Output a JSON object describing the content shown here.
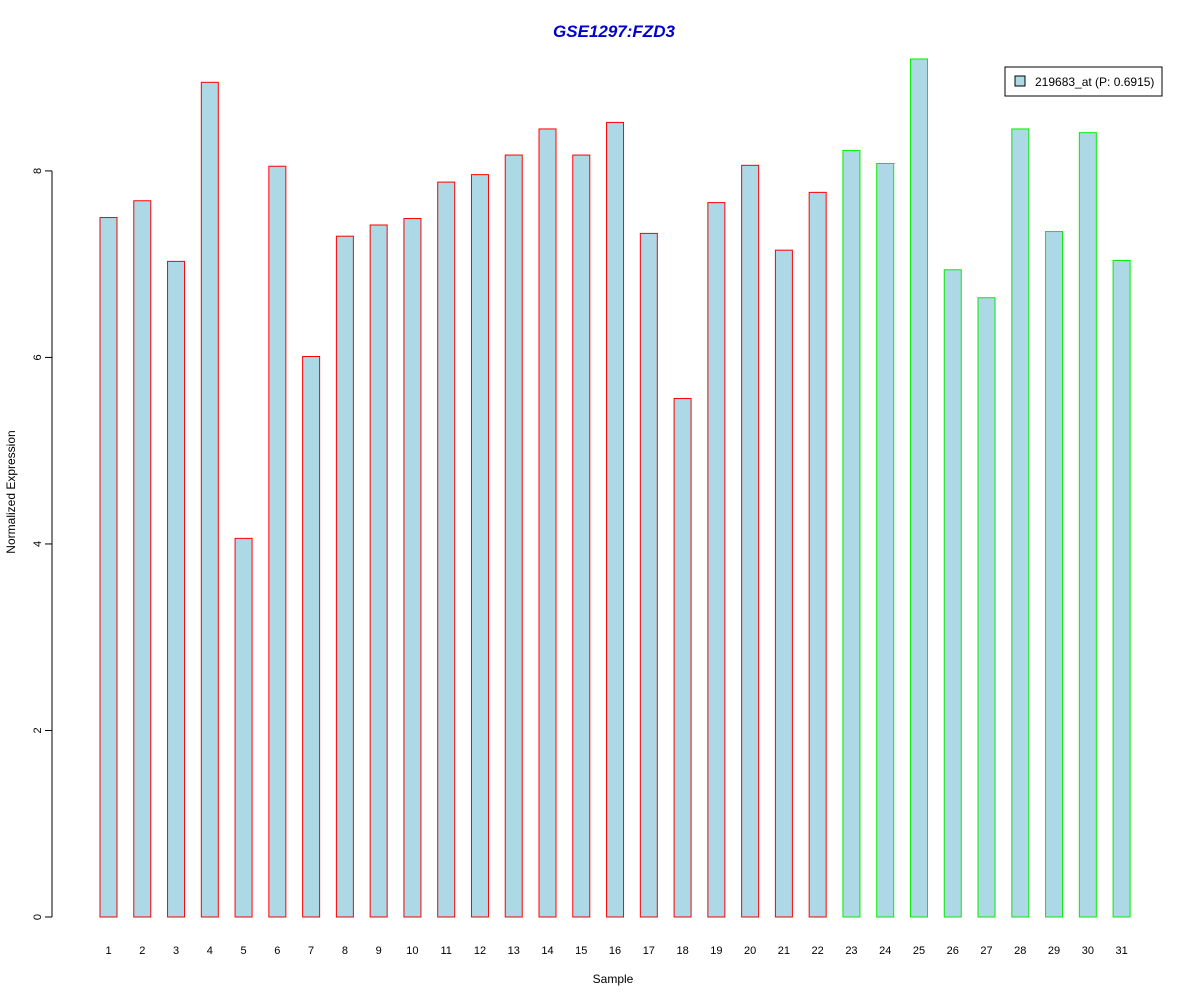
{
  "chart_data": {
    "type": "bar",
    "title": "GSE1297:FZD3",
    "xlabel": "Sample",
    "ylabel": "Normalized Expression",
    "categories": [
      "1",
      "2",
      "3",
      "4",
      "5",
      "6",
      "7",
      "8",
      "9",
      "10",
      "11",
      "12",
      "13",
      "14",
      "15",
      "16",
      "17",
      "18",
      "19",
      "20",
      "21",
      "22",
      "23",
      "24",
      "25",
      "26",
      "27",
      "28",
      "29",
      "30",
      "31"
    ],
    "series": [
      {
        "name": "219683_at (P: 0.6915)",
        "values": [
          7.5,
          7.68,
          7.03,
          8.95,
          4.06,
          8.05,
          6.01,
          7.3,
          7.42,
          7.49,
          7.88,
          7.96,
          8.17,
          8.45,
          8.17,
          8.52,
          7.33,
          5.56,
          7.66,
          8.06,
          7.15,
          7.77,
          8.22,
          8.08,
          9.2,
          6.94,
          6.64,
          8.45,
          7.35,
          8.41,
          7.04
        ]
      }
    ],
    "bar_group": [
      "red",
      "red",
      "red",
      "red",
      "red",
      "red",
      "red",
      "red",
      "red",
      "red",
      "red",
      "red",
      "red",
      "red",
      "red",
      "red",
      "red",
      "red",
      "red",
      "red",
      "red",
      "red",
      "green",
      "green",
      "green",
      "green",
      "green",
      "green",
      "green",
      "green",
      "green"
    ],
    "ylim": [
      0,
      9.2
    ],
    "yticks": [
      "0",
      "2",
      "4",
      "6",
      "8"
    ],
    "legend_position": "top-right",
    "grid": false,
    "colors": {
      "title": "#0000cc",
      "bar_fill": "#add8e6",
      "border_red": "#ff0000",
      "border_green": "#00ee00",
      "axis": "#000000"
    }
  }
}
